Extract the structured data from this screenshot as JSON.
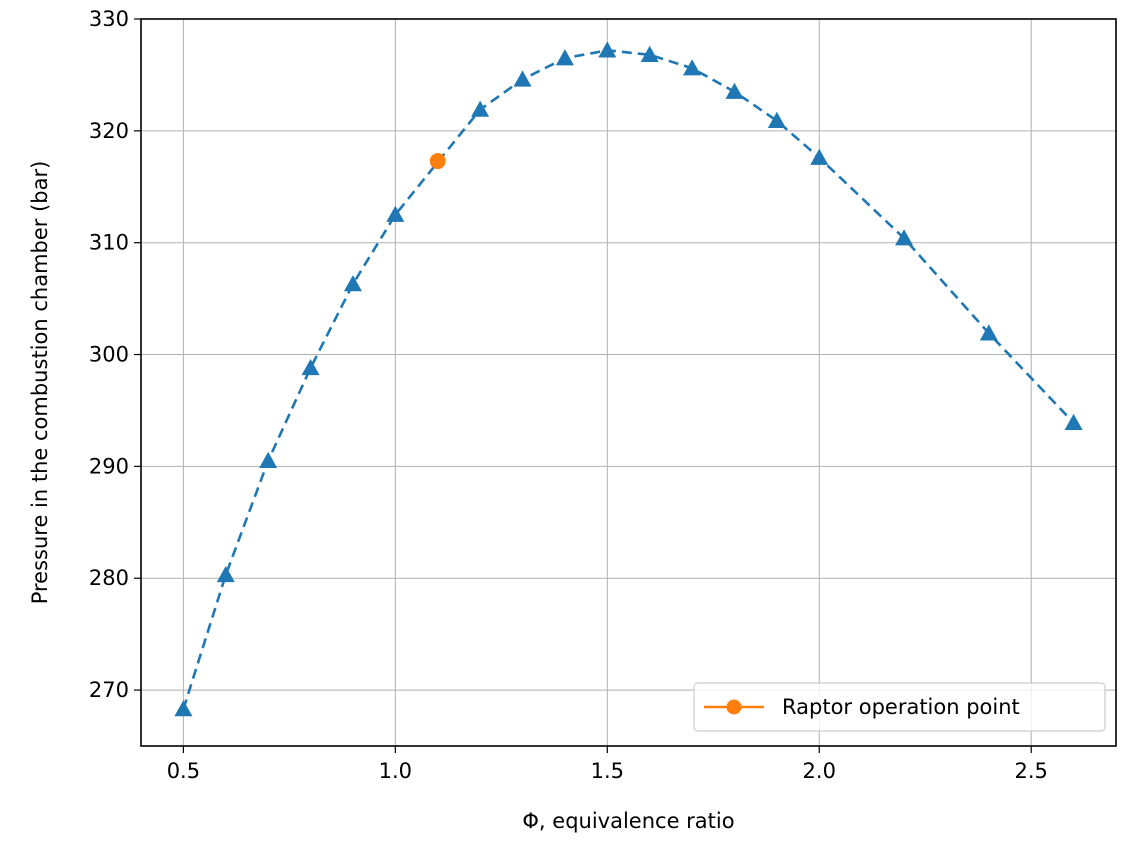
{
  "chart_data": {
    "type": "line",
    "xlabel": "Φ, equivalence ratio",
    "ylabel": "Pressure in the combustion chamber (bar)",
    "xlim": [
      0.4,
      2.7
    ],
    "ylim": [
      265,
      330
    ],
    "x_ticks": [
      0.5,
      1.0,
      1.5,
      2.0,
      2.5
    ],
    "x_tick_labels": [
      "0.5",
      "1.0",
      "1.5",
      "2.0",
      "2.5"
    ],
    "y_ticks": [
      270,
      280,
      290,
      300,
      310,
      320,
      330
    ],
    "y_tick_labels": [
      "270",
      "280",
      "290",
      "300",
      "310",
      "320",
      "330"
    ],
    "grid": true,
    "legend_placement": "lower-right",
    "series": [
      {
        "style": "dashed-line-triangle-markers",
        "color": "#1f77b4",
        "x": [
          0.5,
          0.6,
          0.7,
          0.8,
          0.9,
          1.0,
          1.2,
          1.3,
          1.4,
          1.5,
          1.6,
          1.7,
          1.8,
          1.9,
          2.0,
          2.2,
          2.4,
          2.6
        ],
        "y": [
          268.3,
          280.3,
          290.5,
          298.8,
          306.3,
          312.5,
          321.9,
          324.6,
          326.5,
          327.2,
          326.8,
          325.6,
          323.5,
          320.9,
          317.6,
          310.4,
          301.9,
          293.9
        ]
      },
      {
        "name": "Raptor operation point",
        "style": "circle-marker",
        "color": "#ff7f0e",
        "x": [
          1.1
        ],
        "y": [
          317.3
        ]
      }
    ]
  }
}
